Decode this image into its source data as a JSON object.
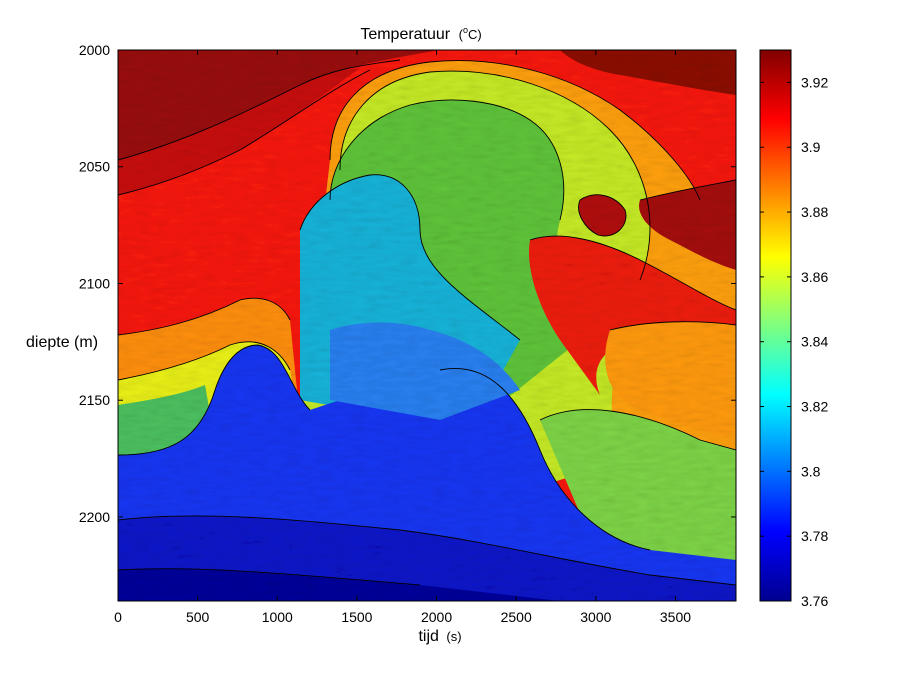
{
  "chart_data": {
    "type": "heatmap",
    "title": "Temperatuur",
    "title_unit": "(°C)",
    "title_unit_base": "(",
    "title_unit_sup": "o",
    "title_unit_rest": "C)",
    "xlabel": "tijd",
    "xlabel_unit": "(s)",
    "ylabel": "diepte (m)",
    "xlim": [
      0,
      3880
    ],
    "ylim": [
      2000,
      2236
    ],
    "y_reversed": true,
    "x_ticks": [
      0,
      500,
      1000,
      1500,
      2000,
      2500,
      3000,
      3500
    ],
    "y_ticks": [
      2000,
      2050,
      2100,
      2150,
      2200
    ],
    "colorbar": {
      "colormap": "jet",
      "range": [
        3.76,
        3.93
      ],
      "ticks": [
        "3.76",
        "3.78",
        "3.8",
        "3.82",
        "3.84",
        "3.86",
        "3.88",
        "3.9",
        "3.92"
      ]
    },
    "contour_color": "#000000",
    "contours": true,
    "grid": false
  }
}
